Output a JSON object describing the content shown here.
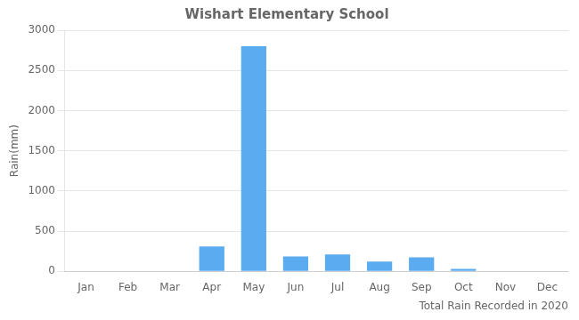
{
  "chart_data": {
    "type": "bar",
    "title": "Wishart Elementary School",
    "xlabel": "Total Rain Recorded in 2020",
    "ylabel": "Rain(mm)",
    "categories": [
      "Jan",
      "Feb",
      "Mar",
      "Apr",
      "May",
      "Jun",
      "Jul",
      "Aug",
      "Sep",
      "Oct",
      "Nov",
      "Dec"
    ],
    "values": [
      0,
      0,
      0,
      310,
      2800,
      185,
      210,
      120,
      175,
      30,
      0,
      0
    ],
    "color": "#5aabf0",
    "ylim": [
      0,
      3000
    ],
    "yticks": [
      0,
      500,
      1000,
      1500,
      2000,
      2500,
      3000
    ],
    "grid": "y"
  }
}
